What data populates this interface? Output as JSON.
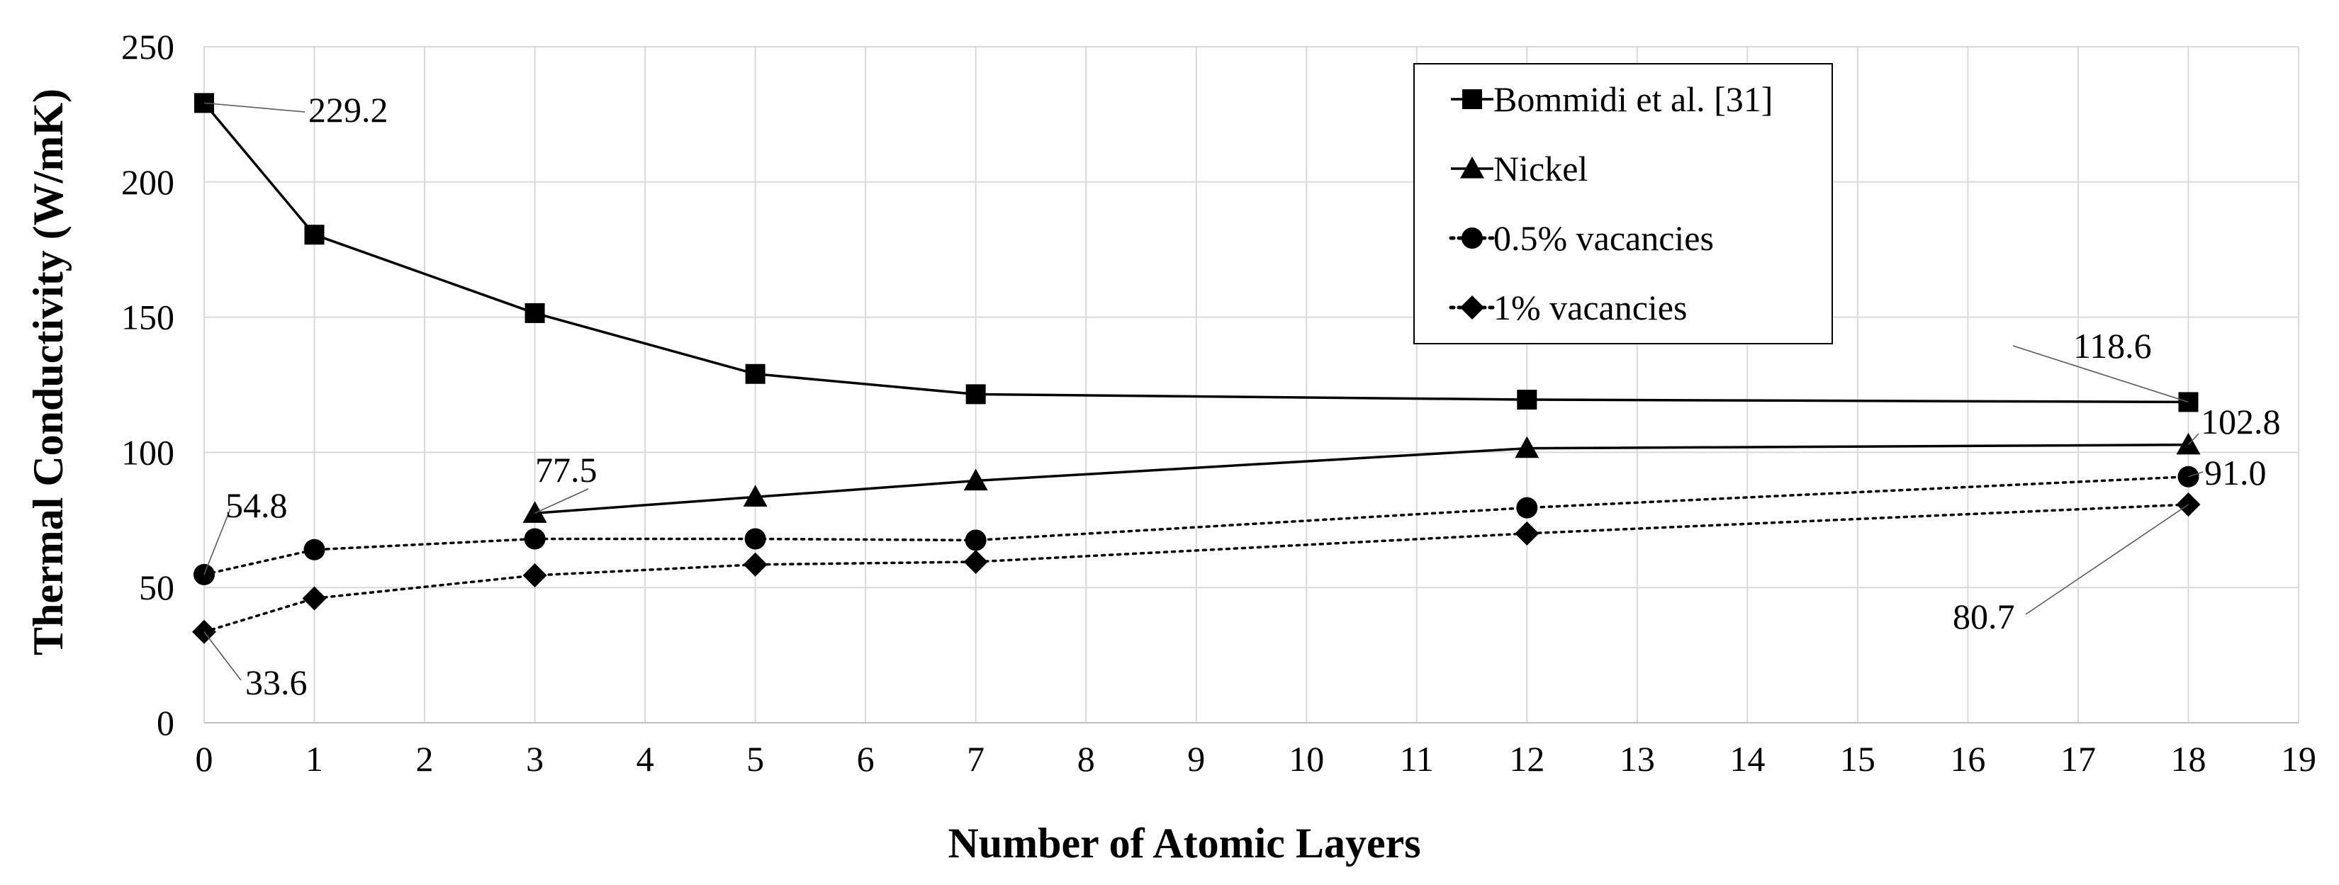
{
  "chart_data": {
    "type": "line",
    "title": "",
    "xlabel": "Number of Atomic Layers",
    "ylabel": "Thermal Conductivity (W/mK)",
    "xlim": [
      0,
      19
    ],
    "ylim": [
      0,
      250
    ],
    "x_ticks": [
      "0",
      "1",
      "2",
      "3",
      "4",
      "5",
      "6",
      "7",
      "8",
      "9",
      "10",
      "11",
      "12",
      "13",
      "14",
      "15",
      "16",
      "17",
      "18",
      "19"
    ],
    "y_ticks": [
      "0",
      "50",
      "100",
      "150",
      "200",
      "250"
    ],
    "grid": true,
    "legend_placement": "top-center",
    "series": [
      {
        "name": "Bommidi et al. [31]",
        "marker": "square",
        "line_style": "solid",
        "x": [
          0,
          1,
          3,
          5,
          7,
          12,
          18
        ],
        "y": [
          229.2,
          180.5,
          151.5,
          129,
          121.5,
          119.5,
          118.6
        ]
      },
      {
        "name": "Nickel",
        "marker": "triangle",
        "line_style": "solid",
        "x": [
          3,
          5,
          7,
          12,
          18
        ],
        "y": [
          77.5,
          83.5,
          89.5,
          101.5,
          102.8
        ]
      },
      {
        "name": "0.5% vacancies",
        "marker": "circle",
        "line_style": "dotted",
        "x": [
          0,
          1,
          3,
          5,
          7,
          12,
          18
        ],
        "y": [
          54.8,
          64,
          68,
          68,
          67.5,
          79.5,
          91.0
        ]
      },
      {
        "name": "1% vacancies",
        "marker": "diamond",
        "line_style": "dotted",
        "x": [
          0,
          1,
          3,
          5,
          7,
          12,
          18
        ],
        "y": [
          33.6,
          46,
          54.5,
          58.5,
          59.5,
          70,
          80.7
        ]
      }
    ],
    "annotations": [
      {
        "text": "229.2",
        "series": 0,
        "x": 0,
        "y": 229.2
      },
      {
        "text": "118.6",
        "series": 0,
        "x": 18,
        "y": 118.6
      },
      {
        "text": "102.8",
        "series": 1,
        "x": 18,
        "y": 102.8
      },
      {
        "text": "77.5",
        "series": 1,
        "x": 3,
        "y": 77.5
      },
      {
        "text": "54.8",
        "series": 2,
        "x": 0,
        "y": 54.8
      },
      {
        "text": "91.0",
        "series": 2,
        "x": 18,
        "y": 91.0
      },
      {
        "text": "33.6",
        "series": 3,
        "x": 0,
        "y": 33.6
      },
      {
        "text": "80.7",
        "series": 3,
        "x": 18,
        "y": 80.7
      }
    ]
  }
}
